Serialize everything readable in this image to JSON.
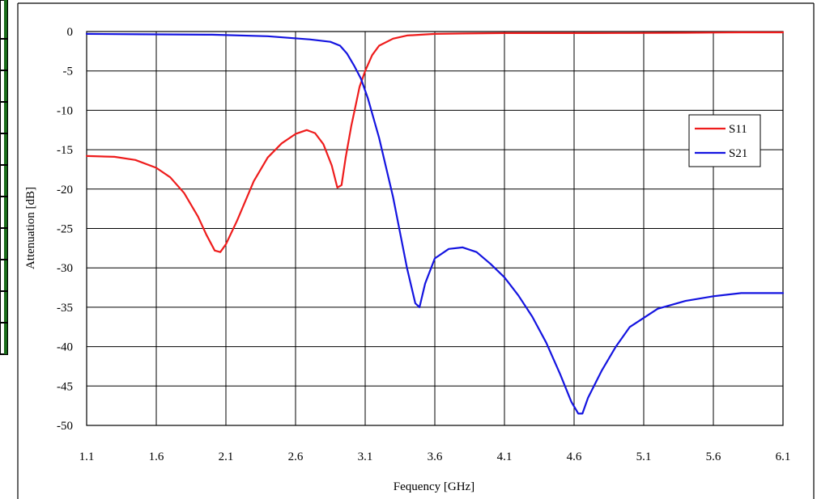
{
  "chart_data": {
    "type": "line",
    "title": "",
    "xlabel": "Fequency [GHz]",
    "ylabel": "Attenuation [dB]",
    "xlim": [
      1.1,
      6.1
    ],
    "ylim": [
      -50,
      0
    ],
    "xticks": [
      1.1,
      1.6,
      2.1,
      2.6,
      3.1,
      3.6,
      4.1,
      4.6,
      5.1,
      5.6,
      6.1
    ],
    "xtick_labels": [
      "1.1",
      "1.6",
      "2.1",
      "2.6",
      "3.1",
      "3.6",
      "4.1",
      "4.6",
      "5.1",
      "5.6",
      "6.1"
    ],
    "yticks": [
      0,
      -5,
      -10,
      -15,
      -20,
      -25,
      -30,
      -35,
      -40,
      -45,
      -50
    ],
    "ytick_labels": [
      "0",
      "-5",
      "-10",
      "-15",
      "-20",
      "-25",
      "-30",
      "-35",
      "-40",
      "-45",
      "-50"
    ],
    "grid": true,
    "legend_position": "right",
    "series": [
      {
        "name": "S11",
        "color": "#ee1c1c",
        "x": [
          1.1,
          1.3,
          1.45,
          1.6,
          1.7,
          1.8,
          1.9,
          1.96,
          2.02,
          2.06,
          2.1,
          2.18,
          2.3,
          2.4,
          2.5,
          2.6,
          2.68,
          2.74,
          2.8,
          2.86,
          2.9,
          2.93,
          2.96,
          3.0,
          3.03,
          3.06,
          3.1,
          3.15,
          3.2,
          3.3,
          3.4,
          3.6,
          3.8,
          4.1,
          4.4,
          4.7,
          5.0,
          5.4,
          5.8,
          6.1
        ],
        "y": [
          -15.8,
          -15.9,
          -16.3,
          -17.3,
          -18.5,
          -20.5,
          -23.5,
          -25.8,
          -27.8,
          -28.0,
          -27.0,
          -24.0,
          -19.0,
          -16.0,
          -14.2,
          -13.0,
          -12.5,
          -12.9,
          -14.3,
          -17.0,
          -19.8,
          -19.5,
          -16.0,
          -12.0,
          -9.5,
          -7.0,
          -5.0,
          -3.0,
          -1.8,
          -0.9,
          -0.5,
          -0.3,
          -0.25,
          -0.2,
          -0.2,
          -0.2,
          -0.18,
          -0.15,
          -0.1,
          -0.1
        ]
      },
      {
        "name": "S21",
        "color": "#1414e0",
        "x": [
          1.1,
          1.5,
          2.0,
          2.4,
          2.7,
          2.85,
          2.92,
          2.97,
          3.02,
          3.07,
          3.12,
          3.2,
          3.3,
          3.4,
          3.46,
          3.49,
          3.53,
          3.6,
          3.7,
          3.8,
          3.9,
          4.0,
          4.1,
          4.2,
          4.3,
          4.4,
          4.5,
          4.58,
          4.63,
          4.66,
          4.7,
          4.8,
          4.9,
          5.0,
          5.2,
          5.4,
          5.6,
          5.8,
          6.1
        ],
        "y": [
          -0.3,
          -0.35,
          -0.4,
          -0.6,
          -1.0,
          -1.3,
          -1.8,
          -2.8,
          -4.3,
          -6.0,
          -8.5,
          -13.5,
          -21.0,
          -30.0,
          -34.5,
          -35.0,
          -32.0,
          -28.8,
          -27.6,
          -27.4,
          -28.0,
          -29.5,
          -31.2,
          -33.5,
          -36.2,
          -39.5,
          -43.5,
          -47.0,
          -48.5,
          -48.5,
          -46.5,
          -43.0,
          -40.0,
          -37.5,
          -35.2,
          -34.2,
          -33.6,
          -33.2,
          -33.2
        ]
      }
    ]
  }
}
